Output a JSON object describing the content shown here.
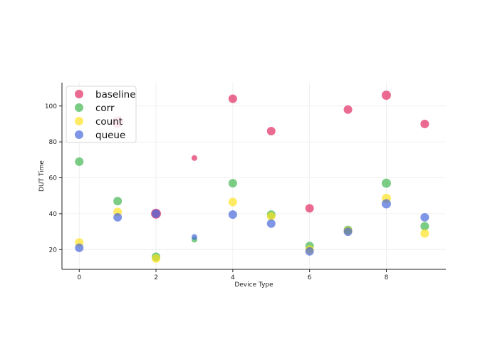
{
  "chart_data": {
    "type": "scatter",
    "title": "",
    "xlabel": "Device Type",
    "ylabel": "DUT Time",
    "xlim": [
      -0.45,
      9.55
    ],
    "ylim": [
      9,
      113
    ],
    "xticks": [
      0,
      2,
      4,
      6,
      8
    ],
    "yticks": [
      20,
      40,
      60,
      80,
      100
    ],
    "grid": true,
    "legend_position": "top-left",
    "series": [
      {
        "name": "baseline",
        "color": "#e0245e",
        "points": [
          {
            "x": 1,
            "y": 91,
            "size": 8
          },
          {
            "x": 2,
            "y": 40,
            "size": 7
          },
          {
            "x": 3,
            "y": 71,
            "size": 4
          },
          {
            "x": 4,
            "y": 104,
            "size": 6
          },
          {
            "x": 5,
            "y": 86,
            "size": 6
          },
          {
            "x": 6,
            "y": 43,
            "size": 6
          },
          {
            "x": 7,
            "y": 98,
            "size": 6
          },
          {
            "x": 8,
            "y": 106,
            "size": 6.5
          },
          {
            "x": 9,
            "y": 90,
            "size": 6
          }
        ]
      },
      {
        "name": "corr",
        "color": "#3cb44b",
        "points": [
          {
            "x": 0,
            "y": 69,
            "size": 6
          },
          {
            "x": 1,
            "y": 47,
            "size": 6
          },
          {
            "x": 2,
            "y": 16,
            "size": 6
          },
          {
            "x": 3,
            "y": 25.5,
            "size": 4
          },
          {
            "x": 4,
            "y": 57,
            "size": 6
          },
          {
            "x": 5,
            "y": 39.5,
            "size": 6
          },
          {
            "x": 6,
            "y": 22,
            "size": 6
          },
          {
            "x": 7,
            "y": 31,
            "size": 6
          },
          {
            "x": 8,
            "y": 57,
            "size": 6.5
          },
          {
            "x": 9,
            "y": 33,
            "size": 6
          }
        ]
      },
      {
        "name": "count",
        "color": "#ffe119",
        "points": [
          {
            "x": 0,
            "y": 24,
            "size": 6
          },
          {
            "x": 1,
            "y": 41,
            "size": 6
          },
          {
            "x": 2,
            "y": 15,
            "size": 6
          },
          {
            "x": 4,
            "y": 46.5,
            "size": 6
          },
          {
            "x": 5,
            "y": 38.5,
            "size": 6
          },
          {
            "x": 6,
            "y": 20,
            "size": 6
          },
          {
            "x": 7,
            "y": 30.5,
            "size": 6
          },
          {
            "x": 8,
            "y": 48.5,
            "size": 6.5
          },
          {
            "x": 9,
            "y": 29,
            "size": 6
          }
        ]
      },
      {
        "name": "queue",
        "color": "#4363d8",
        "points": [
          {
            "x": 0,
            "y": 21,
            "size": 6
          },
          {
            "x": 1,
            "y": 38,
            "size": 6
          },
          {
            "x": 2,
            "y": 40,
            "size": 6
          },
          {
            "x": 3,
            "y": 27,
            "size": 4
          },
          {
            "x": 4,
            "y": 39.5,
            "size": 6
          },
          {
            "x": 5,
            "y": 34.5,
            "size": 6
          },
          {
            "x": 6,
            "y": 19,
            "size": 6
          },
          {
            "x": 7,
            "y": 30,
            "size": 6
          },
          {
            "x": 8,
            "y": 45.5,
            "size": 6.5
          },
          {
            "x": 9,
            "y": 38,
            "size": 6
          }
        ]
      }
    ]
  }
}
